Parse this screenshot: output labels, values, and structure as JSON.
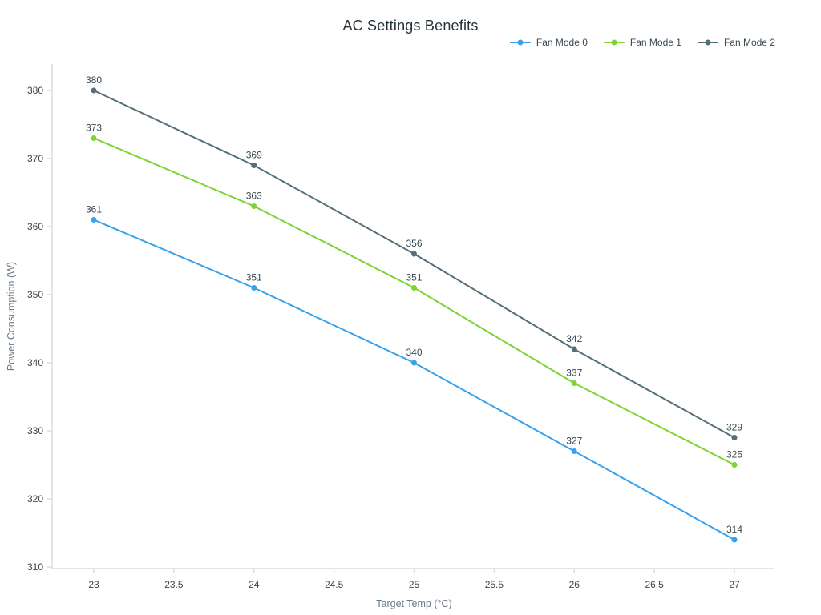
{
  "chart_data": {
    "type": "line",
    "title": "AC Settings Benefits",
    "xlabel": "Target Temp (°C)",
    "ylabel": "Power Consumption (W)",
    "x": [
      23,
      24,
      25,
      26,
      27
    ],
    "xlim": [
      23,
      27
    ],
    "ylim": [
      310,
      380
    ],
    "xticks": [
      23,
      23.5,
      24,
      24.5,
      25,
      25.5,
      26,
      26.5,
      27
    ],
    "yticks": [
      310,
      320,
      330,
      340,
      350,
      360,
      370,
      380
    ],
    "grid": false,
    "legend_position": "top-right",
    "marker": "circle",
    "series": [
      {
        "name": "Fan Mode 0",
        "color": "#36A2EB",
        "values": [
          361,
          351,
          340,
          327,
          314
        ]
      },
      {
        "name": "Fan Mode 1",
        "color": "#7CD332",
        "values": [
          373,
          363,
          351,
          337,
          325
        ]
      },
      {
        "name": "Fan Mode 2",
        "color": "#546E7A",
        "values": [
          380,
          369,
          356,
          342,
          329
        ]
      }
    ],
    "colors": {
      "axis_line": "#D9DEE3",
      "tick_text": "#37474F",
      "axis_title_text": "#6B7A8A",
      "title_text": "#263238",
      "label_text": "#37474F",
      "background": "#FFFFFF"
    }
  }
}
